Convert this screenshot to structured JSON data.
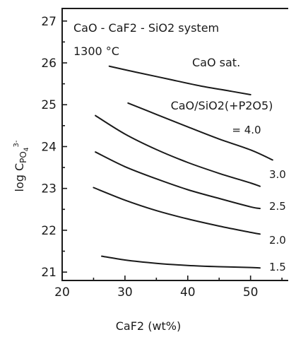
{
  "chart_data": {
    "type": "line",
    "annotations": {
      "system": "CaO - CaF2 - SiO2 system",
      "temperature": "1300 °C",
      "ratio_label": "CaO/SiO2(+P2O5)"
    },
    "xlabel": "CaF2 (wt%)",
    "ylabel": "log C",
    "ylabel_subscript": "PO",
    "ylabel_sub_index": "4",
    "ylabel_superscript": "3-",
    "xlim": [
      20,
      56
    ],
    "ylim": [
      20.8,
      27.3
    ],
    "x_ticks": [
      {
        "value": 20,
        "label": "20"
      },
      {
        "value": 30,
        "label": "30"
      },
      {
        "value": 40,
        "label": "40"
      },
      {
        "value": 50,
        "label": "50"
      }
    ],
    "y_ticks": [
      {
        "value": 21,
        "label": "21"
      },
      {
        "value": 22,
        "label": "22"
      },
      {
        "value": 23,
        "label": "23"
      },
      {
        "value": 24,
        "label": "24"
      },
      {
        "value": 25,
        "label": "25"
      },
      {
        "value": 26,
        "label": "26"
      },
      {
        "value": 27,
        "label": "27"
      }
    ],
    "series": [
      {
        "name": "CaO sat.",
        "points": [
          [
            27.5,
            25.92
          ],
          [
            32,
            25.77
          ],
          [
            37,
            25.61
          ],
          [
            42,
            25.45
          ],
          [
            47,
            25.32
          ],
          [
            50,
            25.24
          ]
        ]
      },
      {
        "name": "= 4.0",
        "points": [
          [
            30.5,
            25.04
          ],
          [
            35,
            24.77
          ],
          [
            40,
            24.47
          ],
          [
            45,
            24.18
          ],
          [
            50,
            23.92
          ],
          [
            53.5,
            23.68
          ]
        ]
      },
      {
        "name": "3.0",
        "points": [
          [
            25.3,
            24.74
          ],
          [
            30,
            24.3
          ],
          [
            35,
            23.93
          ],
          [
            40,
            23.62
          ],
          [
            45,
            23.36
          ],
          [
            50,
            23.13
          ],
          [
            51.5,
            23.05
          ]
        ]
      },
      {
        "name": "2.5",
        "points": [
          [
            25.3,
            23.87
          ],
          [
            30,
            23.52
          ],
          [
            35,
            23.23
          ],
          [
            40,
            22.97
          ],
          [
            45,
            22.76
          ],
          [
            50,
            22.56
          ],
          [
            51.5,
            22.52
          ]
        ]
      },
      {
        "name": "2.0",
        "points": [
          [
            25,
            23.02
          ],
          [
            30,
            22.72
          ],
          [
            35,
            22.47
          ],
          [
            40,
            22.27
          ],
          [
            45,
            22.1
          ],
          [
            50,
            21.95
          ],
          [
            51.5,
            21.91
          ]
        ]
      },
      {
        "name": "1.5",
        "points": [
          [
            26.3,
            21.38
          ],
          [
            30,
            21.29
          ],
          [
            35,
            21.21
          ],
          [
            40,
            21.16
          ],
          [
            45,
            21.13
          ],
          [
            50,
            21.11
          ],
          [
            51.5,
            21.1
          ]
        ]
      }
    ]
  }
}
